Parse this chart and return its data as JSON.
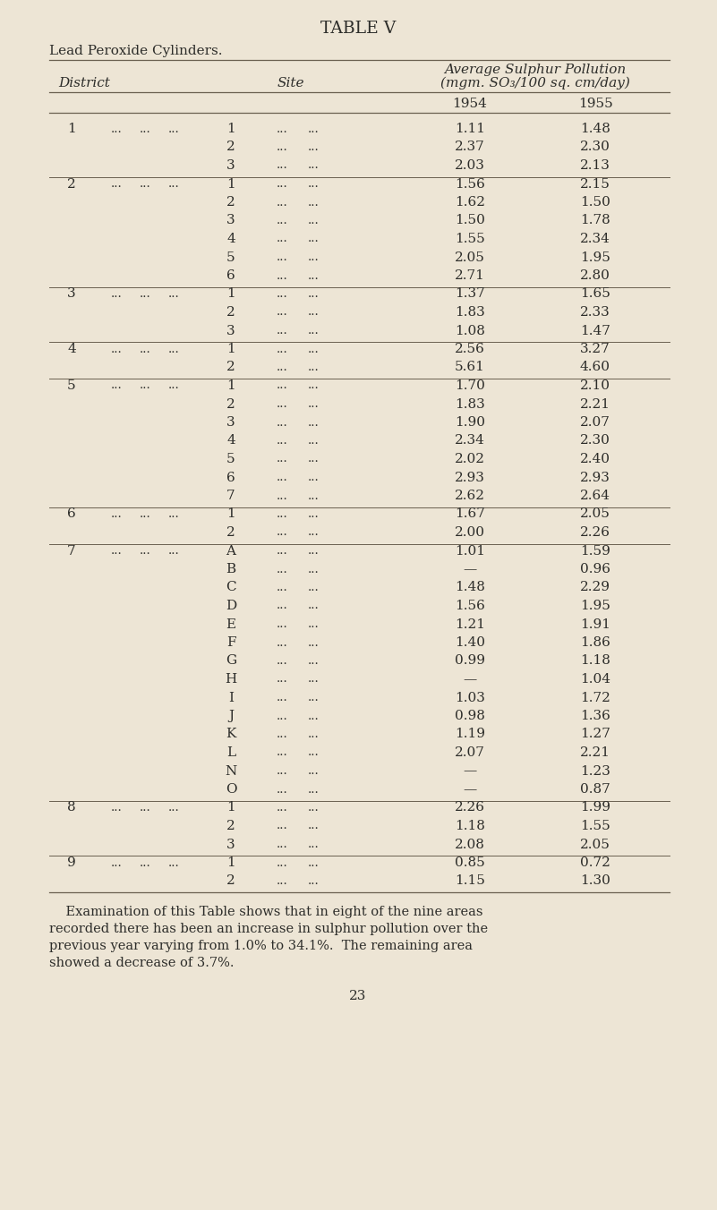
{
  "title": "TABLE V",
  "subtitle_parts": [
    {
      "text": "L",
      "big": true
    },
    {
      "text": "EAD ",
      "big": false
    },
    {
      "text": "P",
      "big": true
    },
    {
      "text": "EROXIDE ",
      "big": false
    },
    {
      "text": "C",
      "big": true
    },
    {
      "text": "YLINDERS.",
      "big": false
    }
  ],
  "col_header_line1": "Average Sulphur Pollution",
  "col_header_line2": "(mgm. SO₃/100 sq. cm/day)",
  "year1": "1954",
  "year2": "1955",
  "district_label": "District",
  "site_label": "Site",
  "background_color": "#ede5d5",
  "rows": [
    {
      "district": "1",
      "site": "1",
      "v1954": "1.11",
      "v1955": "1.48",
      "first_in_district": true
    },
    {
      "district": "",
      "site": "2",
      "v1954": "2.37",
      "v1955": "2.30",
      "first_in_district": false
    },
    {
      "district": "",
      "site": "3",
      "v1954": "2.03",
      "v1955": "2.13",
      "first_in_district": false
    },
    {
      "district": "2",
      "site": "1",
      "v1954": "1.56",
      "v1955": "2.15",
      "first_in_district": true
    },
    {
      "district": "",
      "site": "2",
      "v1954": "1.62",
      "v1955": "1.50",
      "first_in_district": false
    },
    {
      "district": "",
      "site": "3",
      "v1954": "1.50",
      "v1955": "1.78",
      "first_in_district": false
    },
    {
      "district": "",
      "site": "4",
      "v1954": "1.55",
      "v1955": "2.34",
      "first_in_district": false
    },
    {
      "district": "",
      "site": "5",
      "v1954": "2.05",
      "v1955": "1.95",
      "first_in_district": false
    },
    {
      "district": "",
      "site": "6",
      "v1954": "2.71",
      "v1955": "2.80",
      "first_in_district": false
    },
    {
      "district": "3",
      "site": "1",
      "v1954": "1.37",
      "v1955": "1.65",
      "first_in_district": true
    },
    {
      "district": "",
      "site": "2",
      "v1954": "1.83",
      "v1955": "2.33",
      "first_in_district": false
    },
    {
      "district": "",
      "site": "3",
      "v1954": "1.08",
      "v1955": "1.47",
      "first_in_district": false
    },
    {
      "district": "4",
      "site": "1",
      "v1954": "2.56",
      "v1955": "3.27",
      "first_in_district": true
    },
    {
      "district": "",
      "site": "2",
      "v1954": "5.61",
      "v1955": "4.60",
      "first_in_district": false
    },
    {
      "district": "5",
      "site": "1",
      "v1954": "1.70",
      "v1955": "2.10",
      "first_in_district": true
    },
    {
      "district": "",
      "site": "2",
      "v1954": "1.83",
      "v1955": "2.21",
      "first_in_district": false
    },
    {
      "district": "",
      "site": "3",
      "v1954": "1.90",
      "v1955": "2.07",
      "first_in_district": false
    },
    {
      "district": "",
      "site": "4",
      "v1954": "2.34",
      "v1955": "2.30",
      "first_in_district": false
    },
    {
      "district": "",
      "site": "5",
      "v1954": "2.02",
      "v1955": "2.40",
      "first_in_district": false
    },
    {
      "district": "",
      "site": "6",
      "v1954": "2.93",
      "v1955": "2.93",
      "first_in_district": false
    },
    {
      "district": "",
      "site": "7",
      "v1954": "2.62",
      "v1955": "2.64",
      "first_in_district": false
    },
    {
      "district": "6",
      "site": "1",
      "v1954": "1.67",
      "v1955": "2.05",
      "first_in_district": true
    },
    {
      "district": "",
      "site": "2",
      "v1954": "2.00",
      "v1955": "2.26",
      "first_in_district": false
    },
    {
      "district": "7",
      "site": "A",
      "v1954": "1.01",
      "v1955": "1.59",
      "first_in_district": true
    },
    {
      "district": "",
      "site": "B",
      "v1954": "—",
      "v1955": "0.96",
      "first_in_district": false
    },
    {
      "district": "",
      "site": "C",
      "v1954": "1.48",
      "v1955": "2.29",
      "first_in_district": false
    },
    {
      "district": "",
      "site": "D",
      "v1954": "1.56",
      "v1955": "1.95",
      "first_in_district": false
    },
    {
      "district": "",
      "site": "E",
      "v1954": "1.21",
      "v1955": "1.91",
      "first_in_district": false
    },
    {
      "district": "",
      "site": "F",
      "v1954": "1.40",
      "v1955": "1.86",
      "first_in_district": false
    },
    {
      "district": "",
      "site": "G",
      "v1954": "0.99",
      "v1955": "1.18",
      "first_in_district": false
    },
    {
      "district": "",
      "site": "H",
      "v1954": "—",
      "v1955": "1.04",
      "first_in_district": false
    },
    {
      "district": "",
      "site": "I",
      "v1954": "1.03",
      "v1955": "1.72",
      "first_in_district": false
    },
    {
      "district": "",
      "site": "J",
      "v1954": "0.98",
      "v1955": "1.36",
      "first_in_district": false
    },
    {
      "district": "",
      "site": "K",
      "v1954": "1.19",
      "v1955": "1.27",
      "first_in_district": false
    },
    {
      "district": "",
      "site": "L",
      "v1954": "2.07",
      "v1955": "2.21",
      "first_in_district": false
    },
    {
      "district": "",
      "site": "N",
      "v1954": "—",
      "v1955": "1.23",
      "first_in_district": false
    },
    {
      "district": "",
      "site": "O",
      "v1954": "—",
      "v1955": "0.87",
      "first_in_district": false
    },
    {
      "district": "8",
      "site": "1",
      "v1954": "2.26",
      "v1955": "1.99",
      "first_in_district": true
    },
    {
      "district": "",
      "site": "2",
      "v1954": "1.18",
      "v1955": "1.55",
      "first_in_district": false
    },
    {
      "district": "",
      "site": "3",
      "v1954": "2.08",
      "v1955": "2.05",
      "first_in_district": false
    },
    {
      "district": "9",
      "site": "1",
      "v1954": "0.85",
      "v1955": "0.72",
      "first_in_district": true
    },
    {
      "district": "",
      "site": "2",
      "v1954": "1.15",
      "v1955": "1.30",
      "first_in_district": false
    }
  ],
  "footer_text": "    Examination of this Table shows that in eight of the nine areas\nrecorded there has been an increase in sulphur pollution over the\nprevious year varying from 1.0% to 34.1%.  The remaining area\nshowed a decrease of 3.7%.",
  "page_number": "23",
  "dots": "..."
}
